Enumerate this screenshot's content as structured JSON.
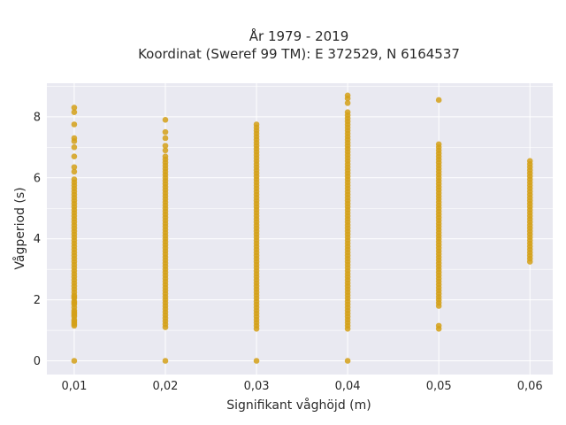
{
  "chart_data": {
    "type": "scatter",
    "title": "År 1979 - 2019",
    "subtitle": "Koordinat (Sweref 99 TM): E 372529, N 6164537",
    "xlabel": "Signifikant våghöjd (m)",
    "ylabel": "Vågperiod (s)",
    "x_ticks": [
      "0,01",
      "0,02",
      "0,03",
      "0,04",
      "0,05",
      "0,06"
    ],
    "y_ticks": [
      "0",
      "2",
      "4",
      "6",
      "8"
    ],
    "xlim": [
      0.007,
      0.0625
    ],
    "ylim": [
      -0.45,
      9.1
    ],
    "grid": true,
    "marker_color": "#d4a017",
    "plot_background": "#e9e9f1",
    "columns": [
      {
        "x": 0.01,
        "range": [
          1.15,
          6.0
        ],
        "points": [
          0,
          1.2,
          1.3,
          1.5,
          1.6,
          1.9,
          2.1,
          6.2,
          6.35,
          6.7,
          7.0,
          7.2,
          7.3,
          7.75,
          8.15,
          8.3
        ]
      },
      {
        "x": 0.02,
        "range": [
          1.1,
          6.75
        ],
        "points": [
          0,
          6.9,
          7.05,
          7.3,
          7.5,
          7.9
        ]
      },
      {
        "x": 0.03,
        "range": [
          1.05,
          7.8
        ],
        "points": [
          0
        ]
      },
      {
        "x": 0.04,
        "range": [
          1.05,
          8.2
        ],
        "points": [
          0,
          8.45,
          8.6,
          8.7
        ]
      },
      {
        "x": 0.05,
        "range": [
          1.8,
          7.1
        ],
        "points": [
          1.05,
          1.15,
          8.55
        ]
      },
      {
        "x": 0.06,
        "range": [
          3.25,
          6.6
        ],
        "points": []
      }
    ]
  }
}
